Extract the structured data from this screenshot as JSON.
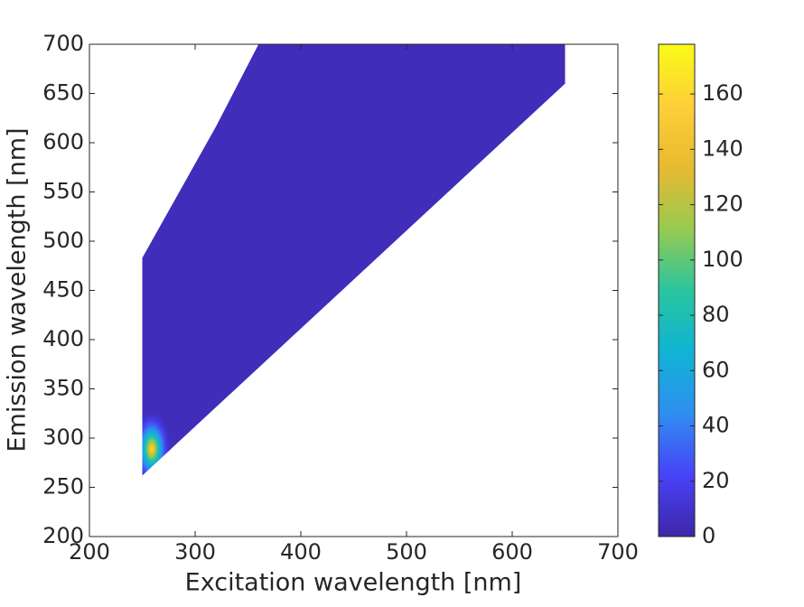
{
  "chart_data": {
    "type": "contour",
    "xlabel": "Excitation wavelength [nm]",
    "ylabel": "Emission wavelength [nm]",
    "xlim": [
      200,
      700
    ],
    "xticks": [
      200,
      300,
      400,
      500,
      600,
      700
    ],
    "ylim": [
      200,
      700
    ],
    "yticks": [
      200,
      250,
      300,
      350,
      400,
      450,
      500,
      550,
      600,
      650,
      700
    ],
    "clim": [
      0,
      178
    ],
    "cticks": [
      0,
      20,
      40,
      60,
      80,
      100,
      120,
      140,
      160
    ],
    "colormap": [
      "#3e26a8",
      "#4743f8",
      "#2f8ef0",
      "#10b4d4",
      "#2ac59e",
      "#97ca51",
      "#e8ba30",
      "#fdcf39",
      "#f9fb15"
    ],
    "boundary": {
      "x": [
        250,
        250,
        320,
        360,
        650,
        650,
        250
      ],
      "y": [
        262,
        483,
        617,
        700,
        700,
        660,
        262
      ]
    },
    "background_value": 5,
    "peak": {
      "x": 259,
      "y": 289,
      "value": 170
    }
  }
}
